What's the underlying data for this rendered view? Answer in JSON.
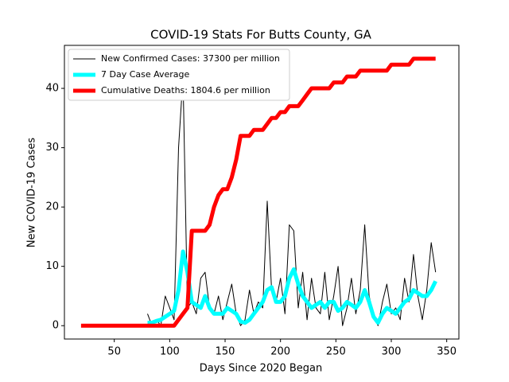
{
  "chart_data": {
    "type": "line",
    "title": "COVID-19 Stats For Butts County, GA",
    "xlabel": "Days Since 2020 Began",
    "ylabel": "New COVID-19 Cases",
    "x": [
      20,
      24,
      28,
      32,
      36,
      40,
      44,
      48,
      52,
      56,
      60,
      64,
      68,
      72,
      76,
      80,
      84,
      88,
      92,
      96,
      100,
      104,
      108,
      112,
      116,
      120,
      124,
      128,
      132,
      136,
      140,
      144,
      148,
      152,
      156,
      160,
      164,
      168,
      172,
      176,
      180,
      184,
      188,
      192,
      196,
      200,
      204,
      208,
      212,
      216,
      220,
      224,
      228,
      232,
      236,
      240,
      244,
      248,
      252,
      256,
      260,
      264,
      268,
      272,
      276,
      280,
      284,
      288,
      292,
      296,
      300,
      304,
      308,
      312,
      316,
      320,
      324,
      328,
      332,
      336,
      340
    ],
    "series": [
      {
        "name": "New Confirmed Cases: 37300 per million",
        "color": "#000000",
        "width": 1,
        "values": [
          null,
          null,
          null,
          null,
          null,
          null,
          null,
          null,
          null,
          null,
          null,
          null,
          null,
          null,
          null,
          2,
          0,
          1,
          0,
          5,
          3,
          1,
          30,
          42,
          3,
          4,
          2,
          8,
          9,
          3,
          2,
          5,
          1,
          4,
          7,
          2,
          0,
          1,
          6,
          2,
          4,
          3,
          21,
          6,
          4,
          8,
          2,
          17,
          16,
          3,
          9,
          1,
          8,
          3,
          2,
          9,
          1,
          5,
          10,
          0,
          3,
          8,
          2,
          6,
          17,
          5,
          2,
          0,
          4,
          7,
          2,
          3,
          1,
          8,
          4,
          12,
          5,
          1,
          6,
          14,
          9
        ]
      },
      {
        "name": "7 Day Case Average",
        "color": "#00ffff",
        "width": 5,
        "values": [
          null,
          null,
          null,
          null,
          null,
          null,
          null,
          null,
          null,
          null,
          null,
          null,
          null,
          null,
          null,
          0.5,
          0.5,
          0.8,
          1,
          1.5,
          2,
          2.5,
          6,
          12.5,
          9,
          4,
          3.5,
          3,
          5,
          3,
          2,
          2,
          2,
          3,
          2.5,
          2,
          0.7,
          0.5,
          1,
          2,
          3,
          4,
          6,
          6.5,
          4,
          4,
          5,
          8,
          9.5,
          7,
          5,
          4,
          3,
          3.5,
          4,
          3,
          4,
          4,
          2.5,
          3,
          4,
          3.5,
          3,
          4,
          6,
          4,
          1.5,
          0.5,
          2,
          3,
          2.5,
          2,
          3,
          4,
          4.5,
          6,
          5.5,
          5,
          5,
          6,
          7.5
        ]
      },
      {
        "name": "Cumulative Deaths: 1804.6 per million",
        "color": "#ff0000",
        "width": 5,
        "values": [
          0,
          0,
          0,
          0,
          0,
          0,
          0,
          0,
          0,
          0,
          0,
          0,
          0,
          0,
          0,
          0,
          0,
          0,
          0,
          0,
          0,
          0,
          1,
          2,
          3,
          16,
          16,
          16,
          16,
          17,
          20,
          22,
          23,
          23,
          25,
          28,
          32,
          32,
          32,
          33,
          33,
          33,
          34,
          35,
          35,
          36,
          36,
          37,
          37,
          37,
          38,
          39,
          40,
          40,
          40,
          40,
          40,
          41,
          41,
          41,
          42,
          42,
          42,
          43,
          43,
          43,
          43,
          43,
          43,
          43,
          44,
          44,
          44,
          44,
          44,
          45,
          45,
          45,
          45,
          45,
          45
        ]
      }
    ],
    "xlim": [
      5,
      361
    ],
    "ylim": [
      -2.25,
      47.25
    ],
    "xticks": [
      50,
      100,
      150,
      200,
      250,
      300,
      350
    ],
    "yticks": [
      0,
      10,
      20,
      30,
      40
    ],
    "legend": "upper left"
  }
}
